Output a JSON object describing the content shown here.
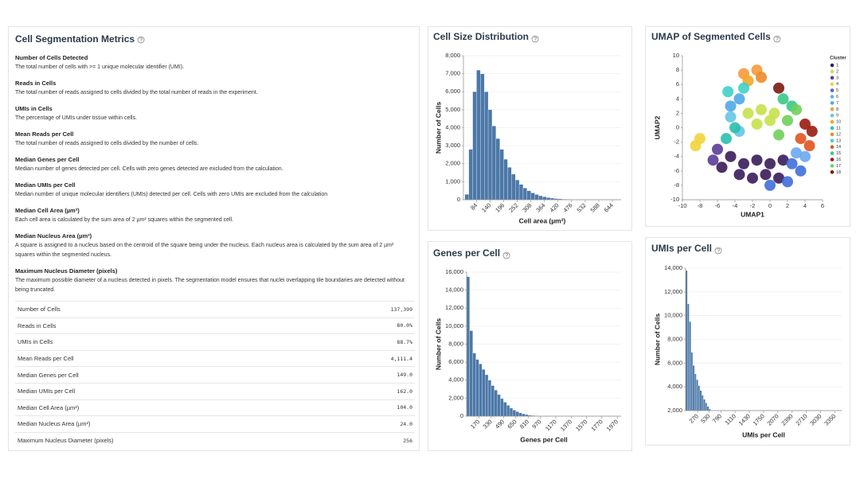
{
  "metrics": {
    "title": "Cell Segmentation Metrics",
    "definitions": [
      {
        "term": "Number of Cells Detected",
        "description": "The total number of cells with >= 1 unique molecular identifier (UMI)."
      },
      {
        "term": "Reads in Cells",
        "description": "The total number of reads assigned to cells divided by the total number of reads in the experiment."
      },
      {
        "term": "UMIs in Cells",
        "description": "The percentage of UMIs under tissue within cells."
      },
      {
        "term": "Mean Reads per Cell",
        "description": "The total number of reads assigned to cells divided by the number of cells."
      },
      {
        "term": "Median Genes per Cell",
        "description": "Median number of genes detected per cell. Cells with zero genes detected are excluded from the calculation."
      },
      {
        "term": "Median UMIs per Cell",
        "description": "Median number of unique molecular identifiers (UMIs) detected per cell. Cells with zero UMIs are excluded from the calculation"
      },
      {
        "term": "Median Cell Area (µm²)",
        "description": "Each cell area is calculated by the sum area of 2 µm² squares within the segmented cell."
      },
      {
        "term": "Median Nucleus Area (µm²)",
        "description": "A square is assigned to a nucleus based on the centroid of the square being under the nucleus. Each nucleus area is calculated by the sum area of 2 µm² squares within the segmented nucleus."
      },
      {
        "term": "Maximum Nucleus Diameter (pixels)",
        "description": "The maximum possible diameter of a nucleus detected in pixels. The segmentation model ensures that nuclei overlapping tile boundaries are detected without being truncated."
      }
    ],
    "table": {
      "rows": [
        [
          "Number of Cells",
          "137,399"
        ],
        [
          "Reads in Cells",
          "80.0%"
        ],
        [
          "UMIs in Cells",
          "88.7%"
        ],
        [
          "Mean Reads per Cell",
          "4,111.4"
        ],
        [
          "Median Genes per Cell",
          "149.0"
        ],
        [
          "Median UMIs per Cell",
          "162.0"
        ],
        [
          "Median Cell Area (µm²)",
          "104.0"
        ],
        [
          "Median Nucleus Area (µm²)",
          "24.0"
        ],
        [
          "Maximum Nucleus Diameter (pixels)",
          "256"
        ]
      ]
    }
  },
  "chart_data": [
    {
      "type": "histogram",
      "title": "Cell Size Distribution",
      "x_label": "Cell area (µm²)",
      "y_label": "Number of Cells",
      "color": "#4c78a8",
      "grid": true,
      "bins": [
        36,
        52,
        68,
        84,
        100,
        116,
        132,
        148,
        164,
        180,
        196,
        212,
        228,
        244,
        260,
        276,
        292,
        308,
        324,
        340,
        356,
        372,
        388,
        404,
        420,
        436,
        452,
        468,
        484,
        500,
        516
      ],
      "values": [
        300,
        2800,
        6000,
        7200,
        7000,
        6000,
        5000,
        4100,
        3400,
        2800,
        2250,
        1800,
        1420,
        1100,
        850,
        650,
        500,
        380,
        290,
        220,
        165,
        120,
        90,
        65,
        48,
        34,
        24,
        16,
        10,
        6
      ],
      "xlim": [
        30,
        680
      ],
      "xticks": [
        84,
        140,
        196,
        252,
        308,
        364,
        420,
        476,
        532,
        588,
        644
      ],
      "ylim": [
        0,
        8000
      ],
      "yticks": [
        0,
        {
          "value": 1000,
          "label": "1,000"
        },
        {
          "value": 2000,
          "label": "2,000"
        },
        {
          "value": 3000,
          "label": "3,000"
        },
        {
          "value": 4000,
          "label": "4,000"
        },
        {
          "value": 5000,
          "label": "5,000"
        },
        {
          "value": 6000,
          "label": "6,000"
        },
        {
          "value": 7000,
          "label": "7,000"
        },
        {
          "value": 8000,
          "label": "8,000"
        }
      ]
    },
    {
      "type": "scatter",
      "title": "UMAP of Segmented Cells",
      "x_label": "UMAP1",
      "y_label": "UMAP2",
      "legend_title": "Cluster",
      "grid": false,
      "xlim": [
        -10,
        6
      ],
      "xticks": [
        -10,
        -8,
        -6,
        -4,
        -2,
        0,
        2,
        4,
        6
      ],
      "ylim": [
        -10,
        10
      ],
      "yticks": [
        -10,
        -8,
        -6,
        -4,
        -2,
        0,
        2,
        4,
        6,
        8,
        10
      ],
      "series": [
        {
          "name": "1",
          "color": "#3a1c5a",
          "x": [
            -4.5,
            -3,
            -1.5,
            0,
            1.5,
            -3.5,
            -2,
            -0.5,
            1,
            -5.5
          ],
          "y": [
            -4,
            -5,
            -4.5,
            -5,
            -4.5,
            -6.5,
            -7,
            -6.5,
            -7,
            -5.5
          ]
        },
        {
          "name": "2",
          "color": "#c6e14b",
          "x": [
            -2.5,
            -1,
            0.5,
            -1.5,
            0
          ],
          "y": [
            2,
            2.5,
            2,
            0.5,
            1
          ]
        },
        {
          "name": "3",
          "color": "#5b3c96",
          "x": [
            -6,
            -6.5
          ],
          "y": [
            -3,
            -4.5
          ]
        },
        {
          "name": "4",
          "color": "#f2d43c",
          "x": [
            -8,
            -8.5
          ],
          "y": [
            -1.5,
            -2.5
          ]
        },
        {
          "name": "5",
          "color": "#3f6fd8",
          "x": [
            2.5,
            3.5,
            2,
            0
          ],
          "y": [
            -5,
            -6,
            -7.5,
            -8
          ]
        },
        {
          "name": "6",
          "color": "#6aa7f0",
          "x": [
            4,
            3
          ],
          "y": [
            -4,
            -3.5
          ]
        },
        {
          "name": "7",
          "color": "#4fa9e8",
          "x": [
            -4.5,
            -3.5
          ],
          "y": [
            3,
            4
          ]
        },
        {
          "name": "8",
          "color": "#f59a3a",
          "x": [
            -3,
            -1.5
          ],
          "y": [
            7.5,
            8
          ]
        },
        {
          "name": "9",
          "color": "#66c7e3",
          "x": [
            -4.5,
            -3.5
          ],
          "y": [
            1.5,
            -0.5
          ]
        },
        {
          "name": "10",
          "color": "#f5a623",
          "x": [
            -2.5
          ],
          "y": [
            6.5
          ]
        },
        {
          "name": "11",
          "color": "#2bbfae",
          "x": [
            -5,
            -4
          ],
          "y": [
            -1.5,
            0
          ]
        },
        {
          "name": "12",
          "color": "#f08a2a",
          "x": [
            -1
          ],
          "y": [
            7
          ]
        },
        {
          "name": "13",
          "color": "#3ed1c9",
          "x": [
            -4.8,
            -3
          ],
          "y": [
            5,
            5.5
          ]
        },
        {
          "name": "14",
          "color": "#e0541f",
          "x": [
            3.5,
            4.5
          ],
          "y": [
            -1.5,
            -2.5
          ]
        },
        {
          "name": "15",
          "color": "#38c98a",
          "x": [
            1.5,
            2.5
          ],
          "y": [
            4,
            3
          ]
        },
        {
          "name": "16",
          "color": "#9a1b0e",
          "x": [
            4,
            4.8
          ],
          "y": [
            0.5,
            -0.5
          ]
        },
        {
          "name": "17",
          "color": "#6fd05a",
          "x": [
            2,
            3,
            1
          ],
          "y": [
            1,
            2.5,
            -1
          ]
        },
        {
          "name": "18",
          "color": "#7a1a10",
          "x": [
            1
          ],
          "y": [
            5.5
          ]
        }
      ]
    },
    {
      "type": "histogram",
      "title": "Genes per Cell",
      "x_label": "Genes per Cell",
      "y_label": "Number of Cells",
      "color": "#4c78a8",
      "grid": true,
      "bins": [
        10,
        50,
        90,
        130,
        170,
        210,
        250,
        290,
        330,
        370,
        410,
        450,
        490,
        530,
        570,
        610,
        650,
        690,
        730,
        770,
        810,
        850,
        890,
        930,
        970,
        1010
      ],
      "values": [
        15500,
        9500,
        7000,
        6300,
        5800,
        5200,
        4600,
        4000,
        3400,
        2900,
        2400,
        1950,
        1550,
        1200,
        900,
        680,
        500,
        360,
        260,
        180,
        120,
        80,
        50,
        30,
        15
      ],
      "xlim": [
        10,
        2020
      ],
      "xticks": [
        170,
        330,
        490,
        650,
        810,
        970,
        1170,
        1370,
        1570,
        1770,
        1970
      ],
      "ylim": [
        0,
        16000
      ],
      "yticks": [
        0,
        {
          "value": 2000,
          "label": "2,000"
        },
        {
          "value": 4000,
          "label": "4,000"
        },
        {
          "value": 6000,
          "label": "6,000"
        },
        {
          "value": 8000,
          "label": "8,000"
        },
        {
          "value": 10000,
          "label": "10,000"
        },
        {
          "value": 12000,
          "label": "12,000"
        },
        {
          "value": 14000,
          "label": "14,000"
        },
        {
          "value": 16000,
          "label": "16,000"
        }
      ]
    },
    {
      "type": "histogram",
      "title": "UMIs per Cell",
      "x_label": "UMIs per Cell",
      "y_label": "Number of Cells",
      "color": "#4c78a8",
      "grid": true,
      "bins": [
        0,
        40,
        80,
        120,
        160,
        200,
        240,
        280,
        320,
        360,
        400,
        440,
        480,
        520,
        560,
        600,
        640,
        680,
        720,
        760,
        800
      ],
      "values": [
        13800,
        11000,
        9500,
        6900,
        5800,
        5100,
        4600,
        4100,
        3700,
        3300,
        2950,
        2650,
        2350,
        2150,
        1950,
        1750,
        1550,
        1400,
        1250,
        1100
      ],
      "xlim": [
        0,
        3500
      ],
      "xticks": [
        270,
        530,
        790,
        1110,
        1430,
        1750,
        2070,
        2390,
        2710,
        3030,
        3350
      ],
      "ylim": [
        2000,
        14000
      ],
      "yticks": [
        {
          "value": 2000,
          "label": "2,000"
        },
        {
          "value": 4000,
          "label": "4,000"
        },
        {
          "value": 6000,
          "label": "6,000"
        },
        {
          "value": 8000,
          "label": "8,000"
        },
        {
          "value": 10000,
          "label": "10,000"
        },
        {
          "value": 12000,
          "label": "12,000"
        },
        {
          "value": 14000,
          "label": "14,000"
        }
      ]
    }
  ]
}
